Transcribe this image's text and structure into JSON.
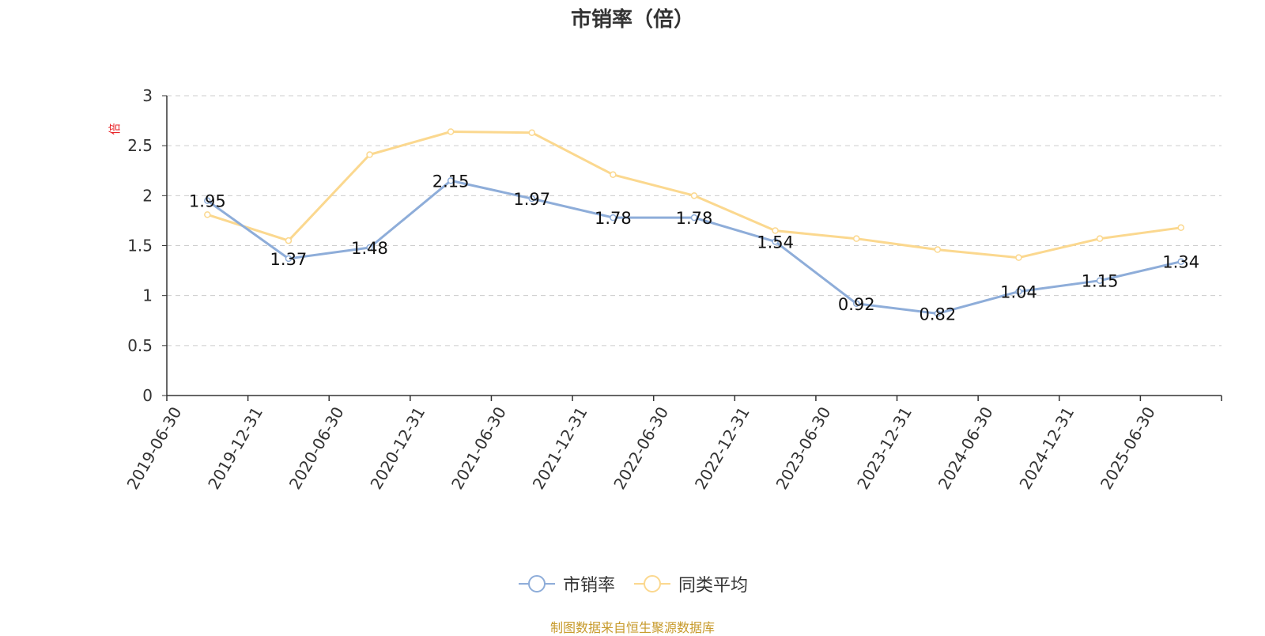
{
  "chart_data": {
    "type": "line",
    "title": "市销率（倍）",
    "ylabel": "倍",
    "xlabel": "",
    "ylim": [
      0,
      3
    ],
    "yticks": [
      "0",
      "0.5",
      "1",
      "1.5",
      "2",
      "2.5",
      "3"
    ],
    "grid": true,
    "legend_position": "bottom-center",
    "categories": [
      "2019-06-30",
      "2019-12-31",
      "2020-06-30",
      "2020-12-31",
      "2021-06-30",
      "2021-12-31",
      "2022-06-30",
      "2022-12-31",
      "2023-06-30",
      "2023-12-31",
      "2024-06-30",
      "2024-12-31",
      "2025-06-30"
    ],
    "series": [
      {
        "name": "市销率",
        "color": "#8eadd9",
        "values": [
          1.95,
          1.37,
          1.48,
          2.15,
          1.97,
          1.78,
          1.78,
          1.54,
          0.92,
          0.82,
          1.04,
          1.15,
          1.34
        ],
        "labels": [
          "1.95",
          "1.37",
          "1.48",
          "2.15",
          "1.97",
          "1.78",
          "1.78",
          "1.54",
          "0.92",
          "0.82",
          "1.04",
          "1.15",
          "1.34"
        ]
      },
      {
        "name": "同类平均",
        "color": "#fbd88f",
        "values": [
          1.81,
          1.55,
          2.41,
          2.64,
          2.63,
          2.21,
          2.0,
          1.65,
          1.57,
          1.46,
          1.38,
          1.57,
          1.68
        ]
      }
    ]
  },
  "footer": {
    "source": "制图数据来自恒生聚源数据库"
  }
}
